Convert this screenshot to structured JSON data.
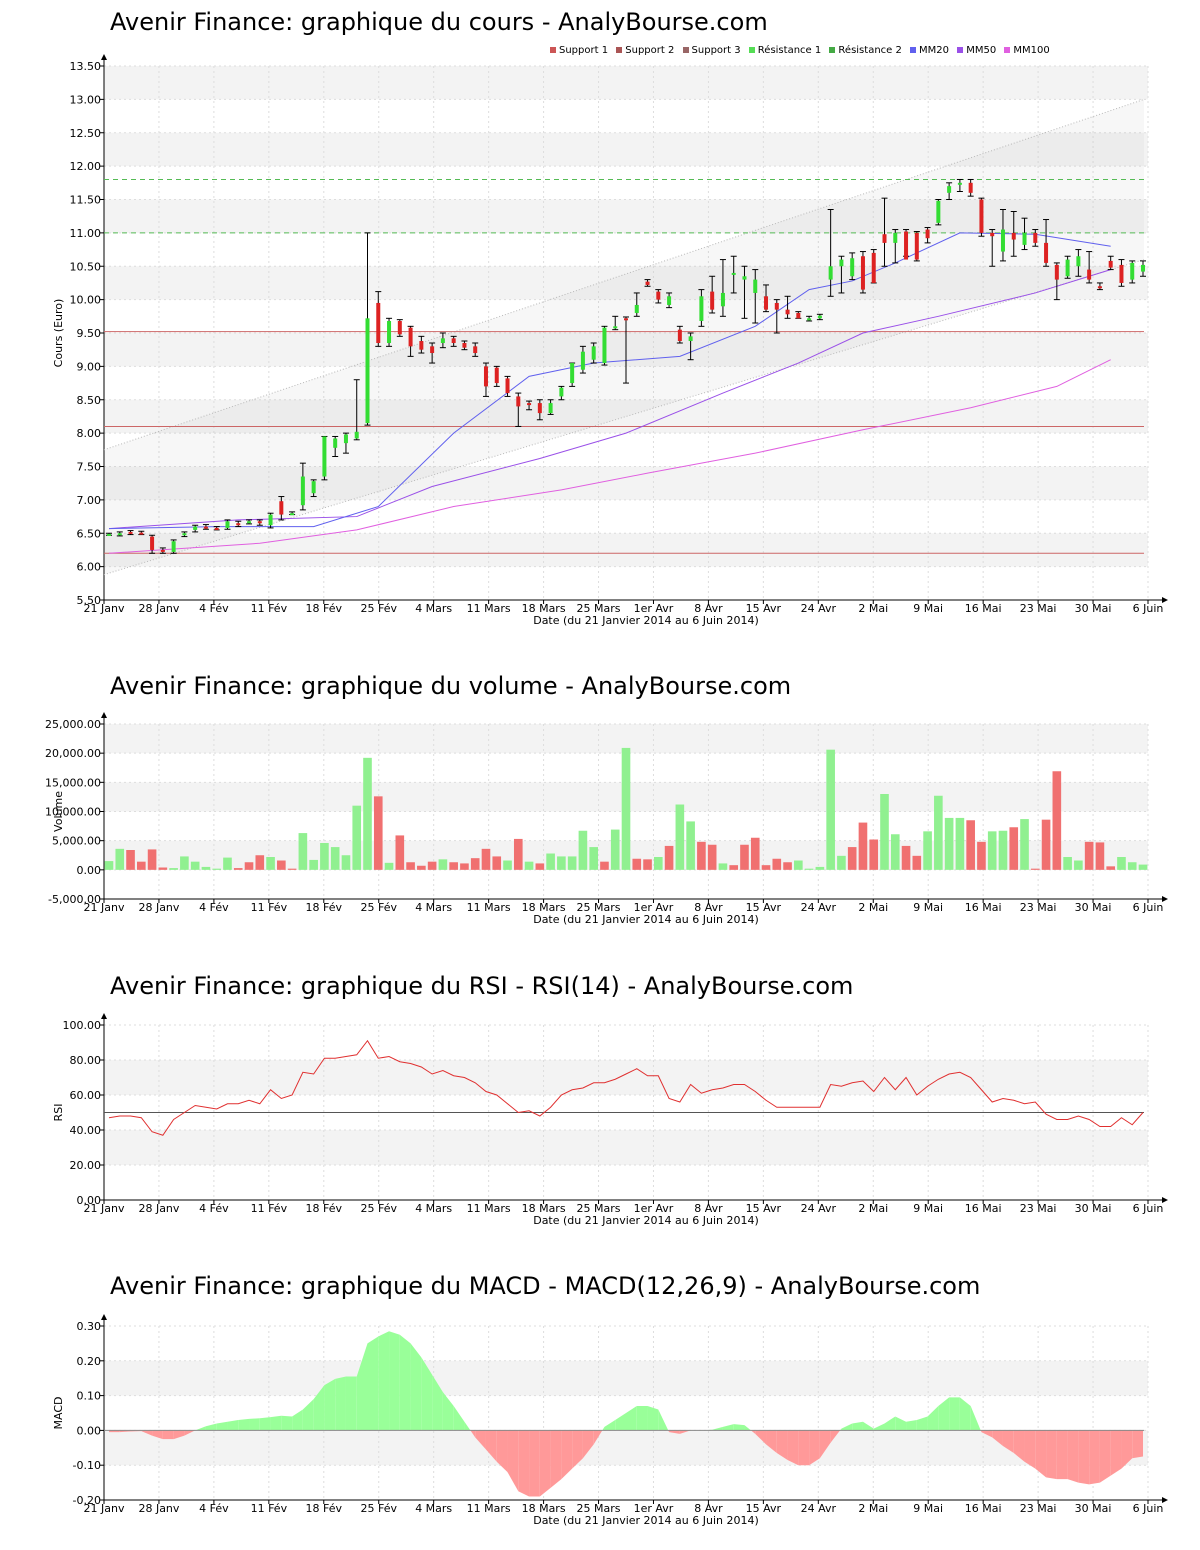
{
  "xlabel": "Date (du 21 Janvier 2014 au 6 Juin 2014)",
  "x_ticks": [
    "21 Janv",
    "28 Janv",
    "4 Fév",
    "11 Fév",
    "18 Fév",
    "25 Fév",
    "4 Mars",
    "11 Mars",
    "18 Mars",
    "25 Mars",
    "1er Avr",
    "8 Avr",
    "15 Avr",
    "24 Avr",
    "2 Mai",
    "9 Mai",
    "16 Mai",
    "23 Mai",
    "30 Mai",
    "6 Juin"
  ],
  "colors": {
    "up": "#33dd33",
    "down": "#dd2222",
    "vol_up": "#90f090",
    "vol_down": "#f07070",
    "mm20": "#6060ee",
    "mm50": "#9a50e8",
    "mm100": "#e060e0",
    "support": "#cc6666",
    "resistance": "#55bb55",
    "rsi": "#e03030",
    "macd_pos": "#99ff99",
    "macd_neg": "#ff9999"
  },
  "chart_data": [
    {
      "type": "candlestick",
      "title": "Avenir Finance: graphique du cours - AnalyBourse.com",
      "ylabel": "Cours (Euro)",
      "xlabel": "Date (du 21 Janvier 2014 au 6 Juin 2014)",
      "ylim": [
        5.5,
        13.5
      ],
      "y_ticks": [
        "5.50",
        "6.00",
        "6.50",
        "7.00",
        "7.50",
        "8.00",
        "8.50",
        "9.00",
        "9.50",
        "10.00",
        "10.50",
        "11.00",
        "11.50",
        "12.00",
        "12.50",
        "13.00",
        "13.50"
      ],
      "legend": [
        "Support 1",
        "Support 2",
        "Support 3",
        "Résistance 1",
        "Résistance 2",
        "MM20",
        "MM50",
        "MM100"
      ],
      "support_levels": [
        9.52,
        8.1,
        6.2
      ],
      "resistance_levels": [
        11.0,
        11.8
      ],
      "channel": {
        "upper": [
          7.75,
          13.0
        ],
        "lower": [
          5.88,
          10.6
        ]
      },
      "ohlc": [
        [
          6.48,
          6.5,
          6.47,
          6.49
        ],
        [
          6.48,
          6.52,
          6.46,
          6.5
        ],
        [
          6.52,
          6.54,
          6.48,
          6.5
        ],
        [
          6.51,
          6.53,
          6.48,
          6.49
        ],
        [
          6.45,
          6.47,
          6.2,
          6.25
        ],
        [
          6.25,
          6.28,
          6.2,
          6.22
        ],
        [
          6.22,
          6.4,
          6.2,
          6.38
        ],
        [
          6.48,
          6.52,
          6.45,
          6.5
        ],
        [
          6.55,
          6.62,
          6.52,
          6.6
        ],
        [
          6.6,
          6.63,
          6.56,
          6.58
        ],
        [
          6.58,
          6.6,
          6.55,
          6.56
        ],
        [
          6.58,
          6.7,
          6.56,
          6.68
        ],
        [
          6.65,
          6.68,
          6.6,
          6.62
        ],
        [
          6.66,
          6.7,
          6.64,
          6.68
        ],
        [
          6.68,
          6.7,
          6.62,
          6.65
        ],
        [
          6.62,
          6.8,
          6.58,
          6.78
        ],
        [
          6.98,
          7.05,
          6.7,
          6.78
        ],
        [
          6.8,
          6.82,
          6.78,
          6.8
        ],
        [
          6.92,
          7.55,
          6.85,
          7.35
        ],
        [
          7.1,
          7.3,
          7.05,
          7.28
        ],
        [
          7.35,
          7.95,
          7.3,
          7.95
        ],
        [
          7.78,
          7.95,
          7.65,
          7.92
        ],
        [
          7.85,
          8.0,
          7.7,
          7.98
        ],
        [
          7.92,
          8.8,
          7.9,
          8.02
        ],
        [
          8.15,
          11.0,
          8.12,
          9.72
        ],
        [
          9.95,
          10.12,
          9.3,
          9.35
        ],
        [
          9.35,
          9.72,
          9.3,
          9.68
        ],
        [
          9.68,
          9.7,
          9.45,
          9.48
        ],
        [
          9.58,
          9.6,
          9.15,
          9.3
        ],
        [
          9.38,
          9.45,
          9.2,
          9.25
        ],
        [
          9.3,
          9.35,
          9.05,
          9.2
        ],
        [
          9.35,
          9.5,
          9.28,
          9.42
        ],
        [
          9.42,
          9.45,
          9.3,
          9.35
        ],
        [
          9.35,
          9.38,
          9.25,
          9.28
        ],
        [
          9.3,
          9.35,
          9.15,
          9.2
        ],
        [
          9.0,
          9.05,
          8.55,
          8.7
        ],
        [
          8.98,
          9.0,
          8.7,
          8.75
        ],
        [
          8.82,
          8.85,
          8.55,
          8.6
        ],
        [
          8.55,
          8.6,
          8.1,
          8.4
        ],
        [
          8.45,
          8.48,
          8.35,
          8.42
        ],
        [
          8.45,
          8.5,
          8.2,
          8.3
        ],
        [
          8.3,
          8.5,
          8.28,
          8.45
        ],
        [
          8.55,
          8.7,
          8.5,
          8.68
        ],
        [
          8.75,
          9.05,
          8.7,
          9.05
        ],
        [
          8.95,
          9.3,
          8.9,
          9.22
        ],
        [
          9.1,
          9.35,
          9.05,
          9.3
        ],
        [
          9.05,
          9.6,
          9.02,
          9.58
        ],
        [
          9.58,
          9.75,
          9.55,
          9.6
        ],
        [
          9.72,
          9.74,
          8.75,
          9.7
        ],
        [
          9.8,
          10.1,
          9.75,
          9.92
        ],
        [
          10.27,
          10.3,
          10.2,
          10.22
        ],
        [
          10.12,
          10.15,
          9.95,
          10.0
        ],
        [
          9.92,
          10.1,
          9.88,
          10.05
        ],
        [
          9.55,
          9.6,
          9.35,
          9.38
        ],
        [
          9.38,
          9.5,
          9.1,
          9.45
        ],
        [
          9.68,
          10.15,
          9.6,
          10.05
        ],
        [
          10.12,
          10.35,
          9.8,
          9.85
        ],
        [
          9.9,
          10.6,
          9.75,
          10.1
        ],
        [
          10.4,
          10.65,
          10.1,
          10.4
        ],
        [
          10.3,
          10.5,
          9.72,
          10.35
        ],
        [
          10.1,
          10.45,
          9.65,
          10.3
        ],
        [
          10.05,
          10.22,
          9.82,
          9.85
        ],
        [
          9.95,
          10.0,
          9.5,
          9.85
        ],
        [
          9.85,
          10.05,
          9.72,
          9.78
        ],
        [
          9.8,
          9.82,
          9.72,
          9.72
        ],
        [
          9.72,
          9.75,
          9.68,
          9.72
        ],
        [
          9.72,
          9.78,
          9.7,
          9.76
        ],
        [
          10.3,
          11.35,
          10.05,
          10.5
        ],
        [
          10.5,
          10.65,
          10.1,
          10.6
        ],
        [
          10.35,
          10.7,
          10.3,
          10.62
        ],
        [
          10.65,
          10.72,
          10.1,
          10.15
        ],
        [
          10.7,
          10.75,
          10.25,
          10.25
        ],
        [
          10.98,
          11.52,
          10.5,
          10.85
        ],
        [
          10.85,
          11.05,
          10.55,
          11.0
        ],
        [
          11.02,
          11.05,
          10.65,
          10.6
        ],
        [
          11.0,
          11.02,
          10.58,
          10.6
        ],
        [
          11.05,
          11.08,
          10.85,
          10.92
        ],
        [
          11.15,
          11.5,
          11.12,
          11.48
        ],
        [
          11.6,
          11.75,
          11.5,
          11.7
        ],
        [
          11.72,
          11.8,
          11.62,
          11.75
        ],
        [
          11.75,
          11.8,
          11.55,
          11.6
        ],
        [
          11.5,
          11.52,
          10.95,
          11.0
        ],
        [
          11.0,
          11.05,
          10.5,
          10.95
        ],
        [
          10.72,
          11.35,
          10.58,
          11.05
        ],
        [
          11.0,
          11.32,
          10.65,
          10.9
        ],
        [
          10.82,
          11.22,
          10.75,
          11.0
        ],
        [
          11.0,
          11.05,
          10.8,
          10.85
        ],
        [
          10.85,
          11.2,
          10.5,
          10.55
        ],
        [
          10.52,
          10.55,
          10.0,
          10.3
        ],
        [
          10.35,
          10.65,
          10.32,
          10.6
        ],
        [
          10.5,
          10.75,
          10.35,
          10.65
        ],
        [
          10.45,
          10.72,
          10.25,
          10.3
        ],
        [
          10.2,
          10.25,
          10.15,
          10.18
        ],
        [
          10.58,
          10.65,
          10.45,
          10.48
        ],
        [
          10.52,
          10.6,
          10.2,
          10.25
        ],
        [
          10.3,
          10.58,
          10.25,
          10.55
        ],
        [
          10.42,
          10.58,
          10.35,
          10.52
        ]
      ],
      "mm20": [
        [
          0,
          6.57
        ],
        [
          10,
          6.6
        ],
        [
          19,
          6.6
        ],
        [
          25,
          6.9
        ],
        [
          32,
          8.0
        ],
        [
          39,
          8.85
        ],
        [
          45,
          9.05
        ],
        [
          53,
          9.15
        ],
        [
          60,
          9.6
        ],
        [
          65,
          10.15
        ],
        [
          69,
          10.28
        ],
        [
          73,
          10.55
        ],
        [
          79,
          11.0
        ],
        [
          86,
          10.98
        ],
        [
          93,
          10.8
        ]
      ],
      "mm50": [
        [
          0,
          6.57
        ],
        [
          12,
          6.7
        ],
        [
          23,
          6.75
        ],
        [
          30,
          7.2
        ],
        [
          40,
          7.62
        ],
        [
          48,
          8.0
        ],
        [
          57,
          8.6
        ],
        [
          64,
          9.05
        ],
        [
          70,
          9.5
        ],
        [
          77,
          9.75
        ],
        [
          86,
          10.1
        ],
        [
          93,
          10.45
        ]
      ],
      "mm100": [
        [
          0,
          6.2
        ],
        [
          14,
          6.35
        ],
        [
          23,
          6.55
        ],
        [
          32,
          6.9
        ],
        [
          42,
          7.15
        ],
        [
          50,
          7.4
        ],
        [
          60,
          7.7
        ],
        [
          70,
          8.05
        ],
        [
          80,
          8.38
        ],
        [
          88,
          8.7
        ],
        [
          93,
          9.1
        ]
      ]
    },
    {
      "type": "bar",
      "title": "Avenir Finance: graphique du volume - AnalyBourse.com",
      "ylabel": "Volume",
      "xlabel": "Date (du 21 Janvier 2014 au 6 Juin 2014)",
      "ylim": [
        -5000,
        25000
      ],
      "y_ticks": [
        "-5,000.00",
        "0.00",
        "5,000.00",
        "10,000.00",
        "15,000.00",
        "20,000.00",
        "25,000.00"
      ],
      "values": [
        1500,
        3600,
        3400,
        1400,
        3500,
        400,
        300,
        2300,
        1400,
        500,
        200,
        2100,
        300,
        1300,
        2500,
        2200,
        1600,
        200,
        6300,
        1700,
        4600,
        3900,
        2500,
        11000,
        19200,
        12600,
        1200,
        5900,
        1300,
        700,
        1400,
        1800,
        1300,
        1100,
        2000,
        3600,
        2300,
        1600,
        5300,
        1400,
        1100,
        2800,
        2300,
        2300,
        6700,
        3900,
        1400,
        6900,
        20900,
        1900,
        1800,
        2200,
        4100,
        11200,
        8300,
        4800,
        4300,
        1100,
        800,
        4300,
        5500,
        800,
        1900,
        1300,
        1600,
        200,
        500,
        20600,
        2400,
        3900,
        8100,
        5200,
        13000,
        6100,
        4100,
        2400,
        6600,
        12700,
        8900,
        8900,
        8500,
        4800,
        6600,
        6700,
        7300,
        8700,
        200,
        8600,
        16900,
        2200,
        1600,
        4800,
        4700,
        600,
        2200,
        1300,
        900
      ],
      "up": [
        true,
        true,
        false,
        false,
        false,
        false,
        true,
        true,
        true,
        true,
        true,
        true,
        false,
        false,
        false,
        true,
        false,
        false,
        true,
        true,
        true,
        true,
        true,
        true,
        true,
        false,
        true,
        false,
        false,
        false,
        false,
        true,
        false,
        false,
        false,
        false,
        false,
        true,
        false,
        true,
        false,
        true,
        true,
        true,
        true,
        true,
        false,
        true,
        true,
        false,
        false,
        true,
        false,
        true,
        true,
        false,
        false,
        true,
        false,
        false,
        false,
        false,
        false,
        false,
        true,
        true,
        true,
        true,
        true,
        false,
        false,
        false,
        true,
        true,
        false,
        false,
        true,
        true,
        true,
        true,
        false,
        false,
        true,
        true,
        false,
        true,
        false,
        false,
        false,
        true,
        true,
        false,
        false,
        false,
        true,
        true,
        true
      ]
    },
    {
      "type": "line",
      "title": "Avenir Finance: graphique du RSI - RSI(14) - AnalyBourse.com",
      "ylabel": "RSI",
      "xlabel": "Date (du 21 Janvier 2014 au 6 Juin 2014)",
      "ylim": [
        0,
        100
      ],
      "y_ticks": [
        "0.00",
        "20.00",
        "40.00",
        "60.00",
        "80.00",
        "100.00"
      ],
      "reference": 50,
      "values": [
        47,
        48,
        48,
        47,
        39,
        37,
        46,
        50,
        54,
        53,
        52,
        55,
        55,
        57,
        55,
        63,
        58,
        60,
        73,
        72,
        81,
        81,
        82,
        83,
        91,
        81,
        82,
        79,
        78,
        76,
        72,
        74,
        71,
        70,
        67,
        62,
        60,
        55,
        50,
        51,
        48,
        53,
        60,
        63,
        64,
        67,
        67,
        69,
        72,
        75,
        71,
        71,
        58,
        56,
        66,
        61,
        63,
        64,
        66,
        66,
        62,
        57,
        53,
        53,
        53,
        53,
        53,
        66,
        65,
        67,
        68,
        62,
        70,
        63,
        70,
        60,
        65,
        69,
        72,
        73,
        70,
        63,
        56,
        58,
        57,
        55,
        56,
        49,
        46,
        46,
        48,
        46,
        42,
        42,
        47,
        43,
        50
      ]
    },
    {
      "type": "area",
      "title": "Avenir Finance: graphique du MACD - MACD(12,26,9) - AnalyBourse.com",
      "ylabel": "MACD",
      "xlabel": "Date (du 21 Janvier 2014 au 6 Juin 2014)",
      "ylim": [
        -0.2,
        0.3
      ],
      "y_ticks": [
        "-0.20",
        "-0.10",
        "0.00",
        "0.10",
        "0.20",
        "0.30"
      ],
      "values": [
        -0.005,
        -0.005,
        -0.003,
        -0.002,
        -0.015,
        -0.025,
        -0.025,
        -0.015,
        0.0,
        0.012,
        0.02,
        0.025,
        0.03,
        0.033,
        0.035,
        0.038,
        0.042,
        0.04,
        0.06,
        0.09,
        0.13,
        0.148,
        0.155,
        0.155,
        0.25,
        0.27,
        0.285,
        0.275,
        0.25,
        0.21,
        0.16,
        0.11,
        0.07,
        0.025,
        -0.02,
        -0.055,
        -0.09,
        -0.12,
        -0.175,
        -0.19,
        -0.19,
        -0.165,
        -0.14,
        -0.11,
        -0.08,
        -0.04,
        0.01,
        0.03,
        0.05,
        0.07,
        0.07,
        0.06,
        -0.005,
        -0.01,
        0.0,
        0.0,
        0.002,
        0.01,
        0.018,
        0.015,
        -0.01,
        -0.04,
        -0.065,
        -0.085,
        -0.1,
        -0.1,
        -0.08,
        -0.035,
        0.005,
        0.02,
        0.025,
        0.005,
        0.02,
        0.04,
        0.025,
        0.03,
        0.04,
        0.07,
        0.095,
        0.095,
        0.07,
        -0.005,
        -0.02,
        -0.045,
        -0.065,
        -0.09,
        -0.11,
        -0.135,
        -0.14,
        -0.14,
        -0.15,
        -0.155,
        -0.15,
        -0.13,
        -0.11,
        -0.08,
        -0.075
      ]
    }
  ]
}
